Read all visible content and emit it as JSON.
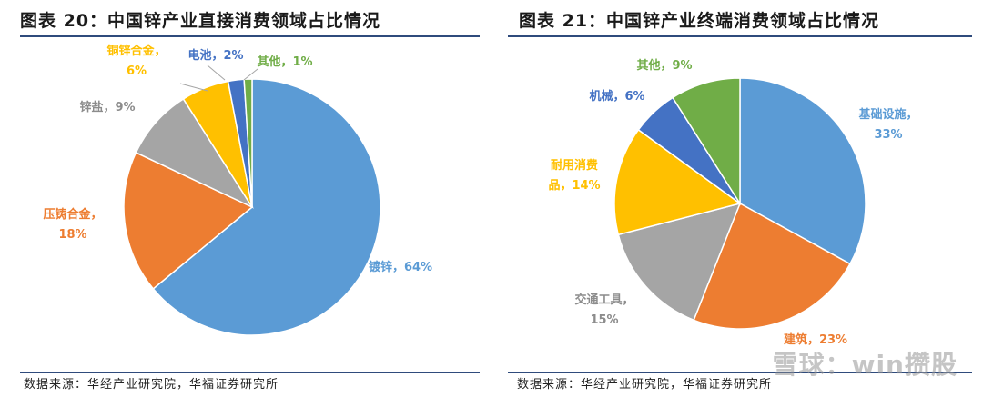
{
  "chart_data": [
    {
      "type": "pie",
      "title": "图表 20：中国锌产业直接消费领域占比情况",
      "slices": [
        {
          "label": "镀锌",
          "value": 64,
          "value_text": "64%",
          "color": "#5b9bd5"
        },
        {
          "label": "压铸合金",
          "value": 18,
          "value_text": "18%",
          "color": "#ed7d31"
        },
        {
          "label": "锌盐",
          "value": 9,
          "value_text": "9%",
          "color": "#a5a5a5"
        },
        {
          "label": "铜锌合金",
          "value": 6,
          "value_text": "6%",
          "color": "#ffc000"
        },
        {
          "label": "电池",
          "value": 2,
          "value_text": "2%",
          "color": "#4472c4"
        },
        {
          "label": "其他",
          "value": 1,
          "value_text": "1%",
          "color": "#70ad47"
        }
      ],
      "source": "数据来源：华经产业研究院，华福证券研究所"
    },
    {
      "type": "pie",
      "title": "图表 21：中国锌产业终端消费领域占比情况",
      "slices": [
        {
          "label": "基础设施",
          "value": 33,
          "value_text": "33%",
          "color": "#5b9bd5"
        },
        {
          "label": "建筑",
          "value": 23,
          "value_text": "23%",
          "color": "#ed7d31"
        },
        {
          "label": "交通工具",
          "value": 15,
          "value_text": "15%",
          "color": "#a5a5a5"
        },
        {
          "label": "耐用消费品",
          "value": 14,
          "value_text": "14%",
          "color": "#ffc000"
        },
        {
          "label": "机械",
          "value": 6,
          "value_text": "6%",
          "color": "#4472c4"
        },
        {
          "label": "其他",
          "value": 9,
          "value_text": "9%",
          "color": "#70ad47"
        }
      ],
      "source": "数据来源：华经产业研究院，华福证券研究所"
    }
  ],
  "watermark": "雪球：win攒股"
}
